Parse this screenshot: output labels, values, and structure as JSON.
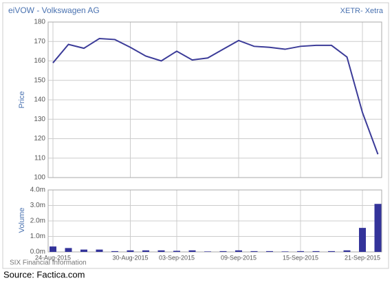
{
  "title": "eiVOW - Volkswagen AG",
  "exchange": "XETR- Xetra",
  "footer": "SIX Financial Information",
  "source": "Source: Factica.com",
  "chart_data": {
    "type": "line",
    "categories": [
      "24-Aug-2015",
      null,
      null,
      null,
      null,
      "30-Aug-2015",
      null,
      null,
      "03-Sep-2015",
      null,
      null,
      null,
      "09-Sep-2015",
      null,
      null,
      null,
      "15-Sep-2015",
      null,
      null,
      null,
      "21-Sep-2015",
      null
    ],
    "series": [
      {
        "name": "Price",
        "type": "line",
        "color": "#3b3b98",
        "values": [
          159,
          168.5,
          166.5,
          171.5,
          171,
          167,
          162.5,
          160,
          165,
          160.5,
          161.5,
          166,
          170.5,
          167.5,
          167,
          166,
          167.5,
          168,
          168,
          162,
          133.5,
          112
        ]
      },
      {
        "name": "Volume",
        "type": "bar",
        "axis": "y2",
        "color": "#33339a",
        "values": [
          0.35,
          0.25,
          0.15,
          0.15,
          0.05,
          0.1,
          0.1,
          0.1,
          0.07,
          0.1,
          0.03,
          0.05,
          0.1,
          0.05,
          0.05,
          0.03,
          0.05,
          0.05,
          0.05,
          0.1,
          1.55,
          3.1
        ]
      }
    ],
    "ylim": [
      100,
      180
    ],
    "yticks": [
      100,
      110,
      120,
      130,
      140,
      150,
      160,
      170,
      180
    ],
    "y2lim": [
      0,
      4
    ],
    "y2ticks": [
      {
        "value": 0,
        "label": "0.0m"
      },
      {
        "value": 1,
        "label": "1.0m"
      },
      {
        "value": 2,
        "label": "2.0m"
      },
      {
        "value": 3,
        "label": "3.0m"
      },
      {
        "value": 4,
        "label": "4.0m"
      }
    ],
    "grid": true
  }
}
